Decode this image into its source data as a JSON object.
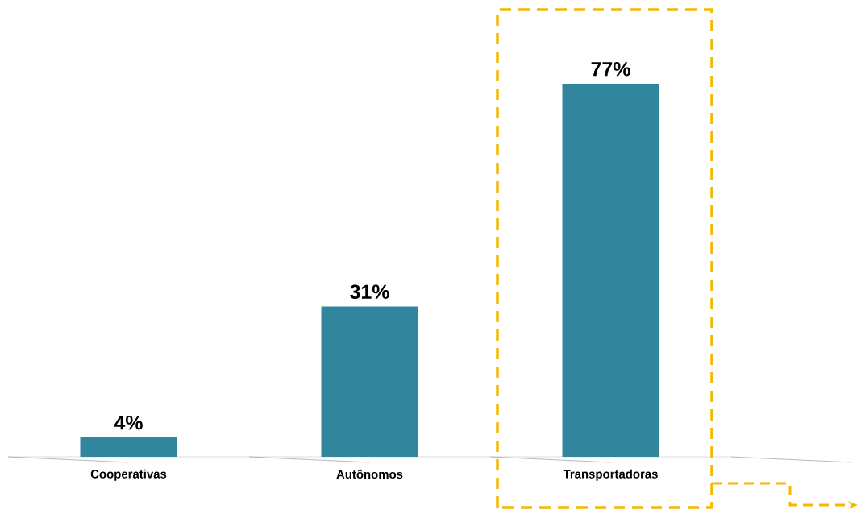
{
  "chart_data": {
    "type": "bar",
    "categories": [
      "Cooperativas",
      "Autônomos",
      "Transportadoras"
    ],
    "values": [
      4,
      31,
      77
    ],
    "color": "#31859c",
    "value_labels": [
      "4%",
      "31%",
      "77%"
    ]
  }
}
